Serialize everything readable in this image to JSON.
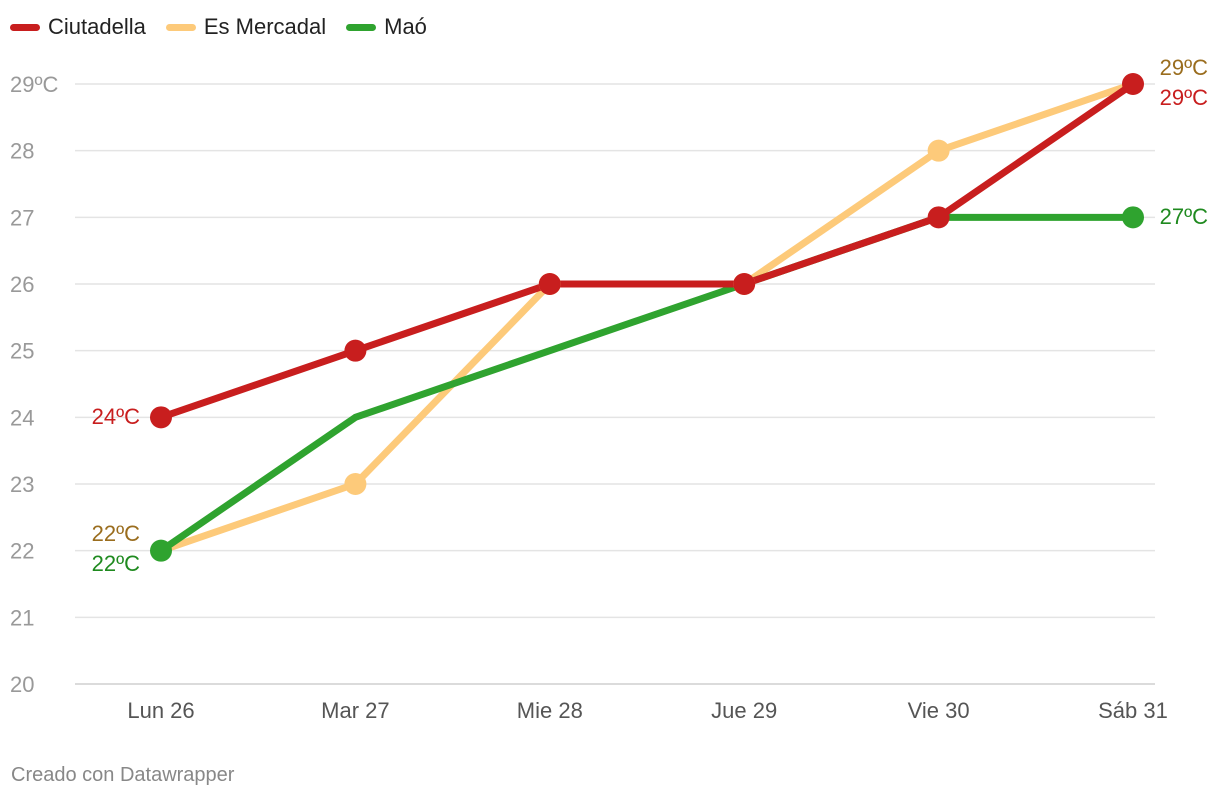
{
  "chart_data": {
    "type": "line",
    "categories": [
      "Lun 26",
      "Mar 27",
      "Mie 28",
      "Jue 29",
      "Vie 30",
      "Sáb 31"
    ],
    "series": [
      {
        "name": "Es Mercadal",
        "color": "#fdca7a",
        "values": [
          22,
          23,
          26,
          26,
          28,
          29
        ],
        "markers": [
          false,
          true,
          true,
          true,
          true,
          false
        ]
      },
      {
        "name": "Maó",
        "color": "#2fa32f",
        "values": [
          22,
          24,
          25,
          26,
          27,
          27
        ],
        "markers": [
          true,
          false,
          false,
          false,
          false,
          true
        ]
      },
      {
        "name": "Ciutadella",
        "color": "#c81e1e",
        "values": [
          24,
          25,
          26,
          26,
          27,
          29
        ],
        "markers": [
          true,
          true,
          true,
          true,
          true,
          true
        ]
      }
    ],
    "legend_order": [
      "Ciutadella",
      "Es Mercadal",
      "Maó"
    ],
    "yticks": [
      "29ºC",
      "28",
      "27",
      "26",
      "25",
      "24",
      "23",
      "22",
      "21",
      "20"
    ],
    "ylim": [
      20,
      29
    ],
    "labels": [
      {
        "text": "24ºC",
        "color": "#c81e1e"
      },
      {
        "text": "22ºC",
        "color": "#9a6d1e"
      },
      {
        "text": "22ºC",
        "color": "#1f8a1f"
      },
      {
        "text": "29ºC",
        "color": "#9a6d1e"
      },
      {
        "text": "29ºC",
        "color": "#c81e1e"
      },
      {
        "text": "27ºC",
        "color": "#1f8a1f"
      }
    ],
    "grid": true,
    "legend_position": "top-left"
  },
  "credit": "Creado con Datawrapper"
}
